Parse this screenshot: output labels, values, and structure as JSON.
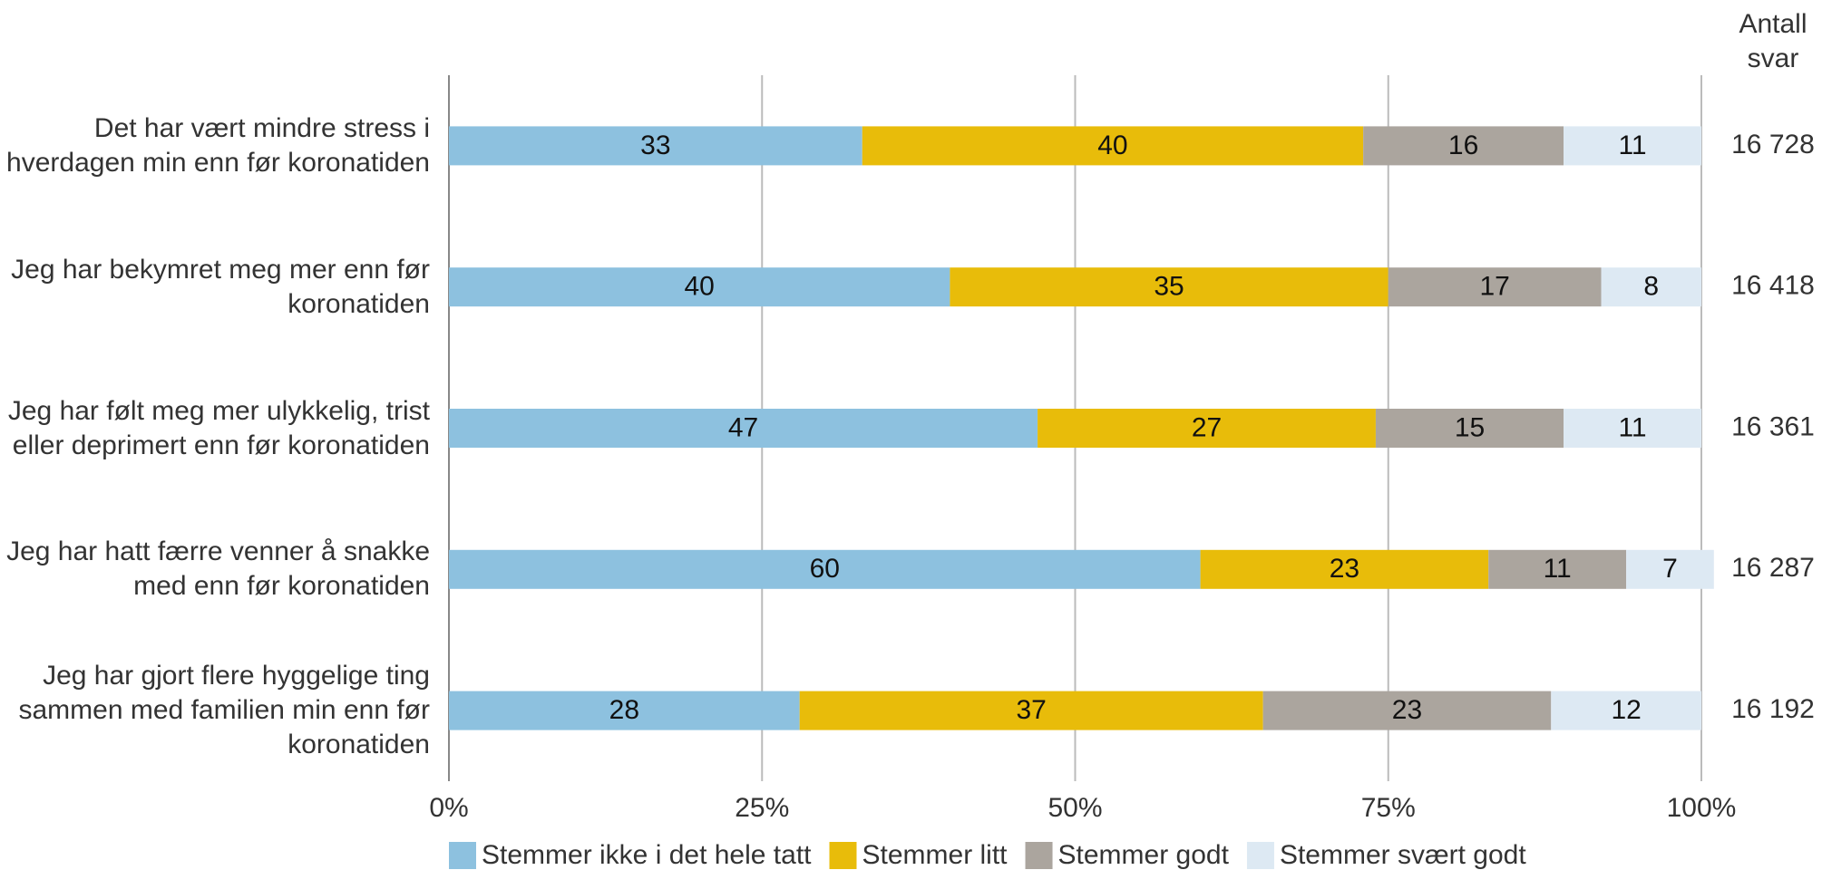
{
  "chart_data": {
    "type": "stacked_bar_horizontal",
    "categories": [
      "Det har vært mindre stress i hverdagen min enn før koronatiden",
      "Jeg har bekymret meg mer enn før koronatiden",
      "Jeg har følt meg mer ulykkelig, trist eller deprimert enn før koronatiden",
      "Jeg har hatt færre venner å snakke med enn før koronatiden",
      "Jeg har gjort flere hyggelige ting sammen med familien min enn før koronatiden"
    ],
    "series": [
      {
        "name": "Stemmer ikke i det hele tatt",
        "color": "#8dc1df",
        "values": [
          33,
          40,
          47,
          60,
          28
        ]
      },
      {
        "name": "Stemmer litt",
        "color": "#e8bc0a",
        "values": [
          40,
          35,
          27,
          23,
          37
        ]
      },
      {
        "name": "Stemmer godt",
        "color": "#aba59e",
        "values": [
          16,
          17,
          15,
          11,
          23
        ]
      },
      {
        "name": "Stemmer svært godt",
        "color": "#dde9f3",
        "values": [
          11,
          8,
          11,
          7,
          12
        ]
      }
    ],
    "xlim": [
      0,
      100
    ],
    "xticks": [
      {
        "value": 0,
        "label": "0%"
      },
      {
        "value": 25,
        "label": "25%"
      },
      {
        "value": 50,
        "label": "50%"
      },
      {
        "value": 75,
        "label": "75%"
      },
      {
        "value": 100,
        "label": "100%"
      }
    ],
    "grid": true,
    "legend": "bottom",
    "count_header": "Antall svar",
    "counts": [
      {
        "value": 16728,
        "label": "16 728"
      },
      {
        "value": 16418,
        "label": "16 418"
      },
      {
        "value": 16361,
        "label": "16 361"
      },
      {
        "value": 16287,
        "label": "16 287"
      },
      {
        "value": 16192,
        "label": "16 192"
      }
    ]
  }
}
